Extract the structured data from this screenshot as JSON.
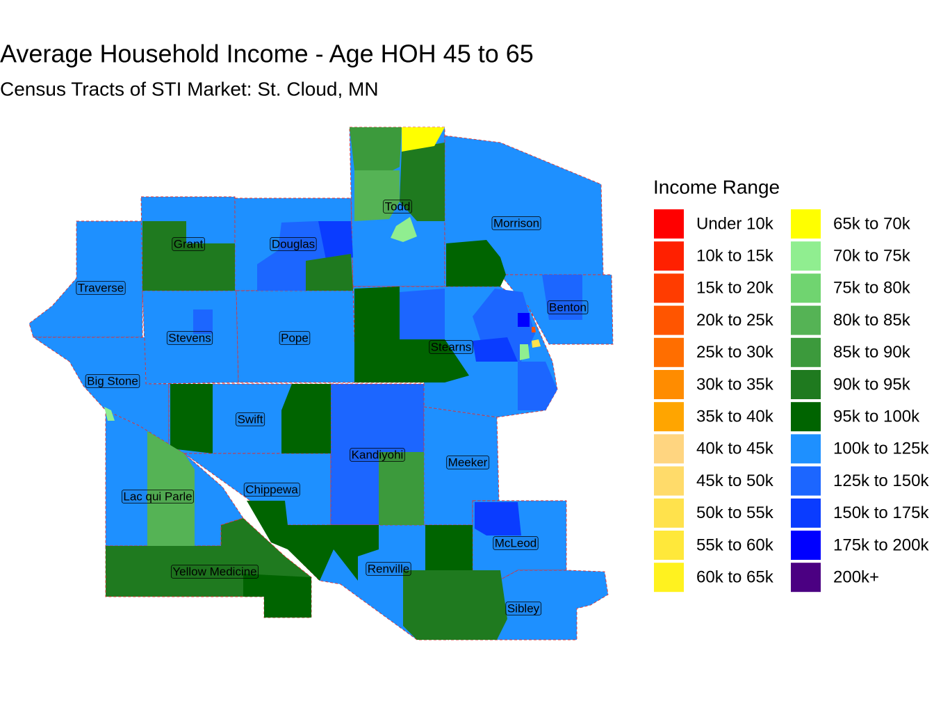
{
  "header": {
    "title": "Average Household Income - Age HOH 45 to 65",
    "subtitle": "Census Tracts of STI Market: St. Cloud, MN"
  },
  "legend": {
    "title": "Income Range",
    "items": [
      {
        "label": "Under 10k",
        "color": "#ff0000"
      },
      {
        "label": "10k to 15k",
        "color": "#ff2000"
      },
      {
        "label": "15k to 20k",
        "color": "#ff3c00"
      },
      {
        "label": "20k to 25k",
        "color": "#ff5500"
      },
      {
        "label": "25k to 30k",
        "color": "#ff6e00"
      },
      {
        "label": "30k to 35k",
        "color": "#ff8c00"
      },
      {
        "label": "35k to 40k",
        "color": "#ffa500"
      },
      {
        "label": "40k to 45k",
        "color": "#ffd580"
      },
      {
        "label": "45k to 50k",
        "color": "#ffdb6a"
      },
      {
        "label": "50k to 55k",
        "color": "#ffe24c"
      },
      {
        "label": "55k to 60k",
        "color": "#ffe83a"
      },
      {
        "label": "60k to 65k",
        "color": "#fff21f"
      },
      {
        "label": "65k to 70k",
        "color": "#ffff00"
      },
      {
        "label": "70k to 75k",
        "color": "#90ee90"
      },
      {
        "label": "75k to 80k",
        "color": "#70d470"
      },
      {
        "label": "80k to 85k",
        "color": "#55b355"
      },
      {
        "label": "85k to 90k",
        "color": "#3c9a3c"
      },
      {
        "label": "90k to 95k",
        "color": "#1f7a1f"
      },
      {
        "label": "95k to 100k",
        "color": "#006400"
      },
      {
        "label": "100k to 125k",
        "color": "#1e90ff"
      },
      {
        "label": "125k to 150k",
        "color": "#1c66ff"
      },
      {
        "label": "150k to 175k",
        "color": "#0a3cff"
      },
      {
        "label": "175k to 200k",
        "color": "#0000ff"
      },
      {
        "label": "200k+",
        "color": "#4b0082"
      }
    ]
  },
  "counties": [
    "Todd",
    "Morrison",
    "Grant",
    "Douglas",
    "Traverse",
    "Benton",
    "Stevens",
    "Pope",
    "Stearns",
    "Big Stone",
    "Swift",
    "Kandiyohi",
    "Meeker",
    "Lac qui Parle",
    "Chippewa",
    "McLeod",
    "Renville",
    "Yellow Medicine",
    "Sibley"
  ]
}
